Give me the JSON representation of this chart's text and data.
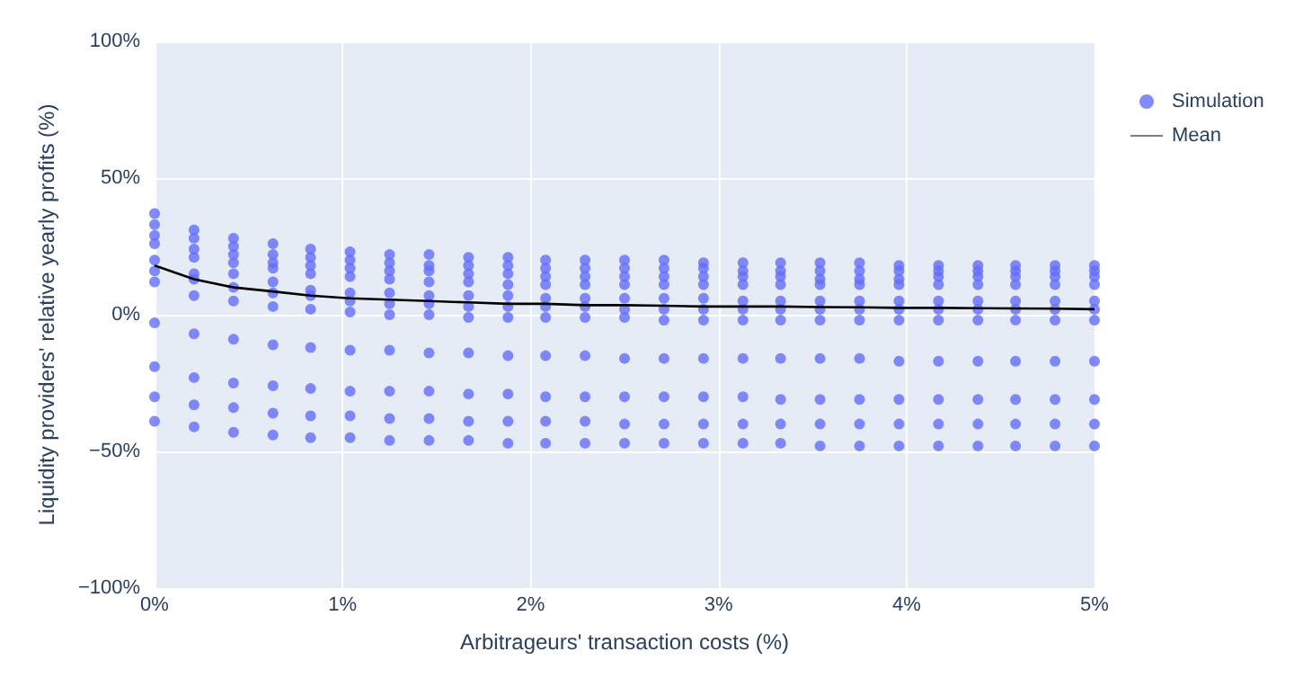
{
  "chart_data": {
    "type": "scatter",
    "xlabel": "Arbitrageurs' transaction costs (%)",
    "ylabel": "Liquidity providers' relative yearly profits (%)",
    "xlim": [
      0,
      5
    ],
    "xticks": [
      {
        "value": 0,
        "label": "0%"
      },
      {
        "value": 1,
        "label": "1%"
      },
      {
        "value": 2,
        "label": "2%"
      },
      {
        "value": 3,
        "label": "3%"
      },
      {
        "value": 4,
        "label": "4%"
      },
      {
        "value": 5,
        "label": "5%"
      }
    ],
    "ylim": [
      -100,
      100
    ],
    "yticks": [
      {
        "value": -100,
        "label": "−100%"
      },
      {
        "value": -50,
        "label": "−50%"
      },
      {
        "value": 0,
        "label": "0%"
      },
      {
        "value": 50,
        "label": "50%"
      },
      {
        "value": 100,
        "label": "100%"
      }
    ],
    "grid": true,
    "legend": "top right",
    "marker": "circle",
    "series": [
      {
        "name": "Simulation",
        "color": "#636efa",
        "x": [
          0,
          0,
          0,
          0,
          0,
          0,
          0,
          0,
          0,
          0,
          0,
          0.21,
          0.21,
          0.21,
          0.21,
          0.21,
          0.21,
          0.21,
          0.21,
          0.21,
          0.21,
          0.21,
          0.42,
          0.42,
          0.42,
          0.42,
          0.42,
          0.42,
          0.42,
          0.42,
          0.42,
          0.42,
          0.42,
          0.63,
          0.63,
          0.63,
          0.63,
          0.63,
          0.63,
          0.63,
          0.63,
          0.63,
          0.63,
          0.63,
          0.83,
          0.83,
          0.83,
          0.83,
          0.83,
          0.83,
          0.83,
          0.83,
          0.83,
          0.83,
          0.83,
          1.04,
          1.04,
          1.04,
          1.04,
          1.04,
          1.04,
          1.04,
          1.04,
          1.04,
          1.04,
          1.04,
          1.25,
          1.25,
          1.25,
          1.25,
          1.25,
          1.25,
          1.25,
          1.25,
          1.25,
          1.25,
          1.25,
          1.46,
          1.46,
          1.46,
          1.46,
          1.46,
          1.46,
          1.46,
          1.46,
          1.46,
          1.46,
          1.46,
          1.67,
          1.67,
          1.67,
          1.67,
          1.67,
          1.67,
          1.67,
          1.67,
          1.67,
          1.67,
          1.67,
          1.88,
          1.88,
          1.88,
          1.88,
          1.88,
          1.88,
          1.88,
          1.88,
          1.88,
          1.88,
          1.88,
          2.08,
          2.08,
          2.08,
          2.08,
          2.08,
          2.08,
          2.08,
          2.08,
          2.08,
          2.08,
          2.08,
          2.29,
          2.29,
          2.29,
          2.29,
          2.29,
          2.29,
          2.29,
          2.29,
          2.29,
          2.29,
          2.29,
          2.5,
          2.5,
          2.5,
          2.5,
          2.5,
          2.5,
          2.5,
          2.5,
          2.5,
          2.5,
          2.5,
          2.71,
          2.71,
          2.71,
          2.71,
          2.71,
          2.71,
          2.71,
          2.71,
          2.71,
          2.71,
          2.71,
          2.92,
          2.92,
          2.92,
          2.92,
          2.92,
          2.92,
          2.92,
          2.92,
          2.92,
          2.92,
          2.92,
          3.13,
          3.13,
          3.13,
          3.13,
          3.13,
          3.13,
          3.13,
          3.13,
          3.13,
          3.13,
          3.13,
          3.33,
          3.33,
          3.33,
          3.33,
          3.33,
          3.33,
          3.33,
          3.33,
          3.33,
          3.33,
          3.33,
          3.54,
          3.54,
          3.54,
          3.54,
          3.54,
          3.54,
          3.54,
          3.54,
          3.54,
          3.54,
          3.54,
          3.75,
          3.75,
          3.75,
          3.75,
          3.75,
          3.75,
          3.75,
          3.75,
          3.75,
          3.75,
          3.75,
          3.96,
          3.96,
          3.96,
          3.96,
          3.96,
          3.96,
          3.96,
          3.96,
          3.96,
          3.96,
          3.96,
          4.17,
          4.17,
          4.17,
          4.17,
          4.17,
          4.17,
          4.17,
          4.17,
          4.17,
          4.17,
          4.17,
          4.38,
          4.38,
          4.38,
          4.38,
          4.38,
          4.38,
          4.38,
          4.38,
          4.38,
          4.38,
          4.38,
          4.58,
          4.58,
          4.58,
          4.58,
          4.58,
          4.58,
          4.58,
          4.58,
          4.58,
          4.58,
          4.58,
          4.79,
          4.79,
          4.79,
          4.79,
          4.79,
          4.79,
          4.79,
          4.79,
          4.79,
          4.79,
          4.79,
          5,
          5,
          5,
          5,
          5,
          5,
          5,
          5,
          5,
          5,
          5
        ],
        "values": [
          37,
          33,
          29,
          26,
          20,
          16,
          12,
          -3,
          -19,
          -30,
          -39,
          31,
          28,
          24,
          21,
          15,
          13,
          7,
          -7,
          -23,
          -33,
          -41,
          28,
          25,
          22,
          19,
          15,
          10,
          5,
          -9,
          -25,
          -34,
          -43,
          26,
          22,
          19,
          17,
          12,
          8,
          3,
          -11,
          -26,
          -36,
          -44,
          24,
          21,
          18,
          15,
          9,
          7,
          2,
          -12,
          -27,
          -37,
          -45,
          23,
          20,
          17,
          14,
          8,
          5,
          1,
          -13,
          -28,
          -37,
          -45,
          22,
          19,
          16,
          13,
          8,
          4,
          0,
          -13,
          -28,
          -38,
          -46,
          22,
          18,
          16,
          12,
          7,
          4,
          0,
          -14,
          -28,
          -38,
          -46,
          21,
          18,
          15,
          12,
          7,
          3,
          -1,
          -14,
          -29,
          -39,
          -46,
          21,
          18,
          15,
          11,
          7,
          3,
          -1,
          -15,
          -29,
          -39,
          -47,
          20,
          17,
          14,
          11,
          6,
          3,
          -1,
          -15,
          -30,
          -39,
          -47,
          20,
          17,
          14,
          11,
          6,
          3,
          -1,
          -15,
          -30,
          -39,
          -47,
          20,
          17,
          14,
          11,
          6,
          2,
          -1,
          -16,
          -30,
          -40,
          -47,
          20,
          17,
          14,
          11,
          6,
          2,
          -2,
          -16,
          -30,
          -40,
          -47,
          19,
          17,
          14,
          11,
          6,
          2,
          -2,
          -16,
          -30,
          -40,
          -47,
          19,
          16,
          14,
          11,
          5,
          2,
          -2,
          -16,
          -30,
          -40,
          -47,
          19,
          16,
          14,
          11,
          5,
          2,
          -2,
          -16,
          -31,
          -40,
          -47,
          19,
          16,
          13,
          11,
          5,
          2,
          -2,
          -16,
          -31,
          -40,
          -48,
          19,
          16,
          13,
          11,
          5,
          2,
          -2,
          -16,
          -31,
          -40,
          -48,
          18,
          16,
          13,
          11,
          5,
          2,
          -2,
          -17,
          -31,
          -40,
          -48,
          18,
          16,
          14,
          11,
          5,
          2,
          -2,
          -17,
          -31,
          -40,
          -48,
          18,
          16,
          14,
          11,
          5,
          2,
          -2,
          -17,
          -31,
          -40,
          -48,
          18,
          16,
          14,
          11,
          5,
          2,
          -2,
          -17,
          -31,
          -40,
          -48,
          18,
          16,
          14,
          11,
          5,
          2,
          -2,
          -17,
          -31,
          -40,
          -48,
          18,
          16,
          14,
          11,
          5,
          2,
          -2,
          -17,
          -31,
          -40,
          -48
        ]
      },
      {
        "name": "Mean",
        "type": "line",
        "color": "#000000",
        "marker": "none",
        "line_style": "solid",
        "x": [
          0,
          0.21,
          0.42,
          0.63,
          0.83,
          1.04,
          1.25,
          1.46,
          1.67,
          1.88,
          2.08,
          2.29,
          2.5,
          2.71,
          2.92,
          3.13,
          3.33,
          3.54,
          3.75,
          3.96,
          4.17,
          4.38,
          4.58,
          4.79,
          5
        ],
        "values": [
          18,
          13,
          10,
          8.5,
          7,
          6,
          5.5,
          5,
          4.5,
          4,
          4,
          3.5,
          3.5,
          3.3,
          3,
          3,
          3,
          2.8,
          2.7,
          2.5,
          2.5,
          2.4,
          2.3,
          2.2,
          2
        ]
      }
    ]
  }
}
